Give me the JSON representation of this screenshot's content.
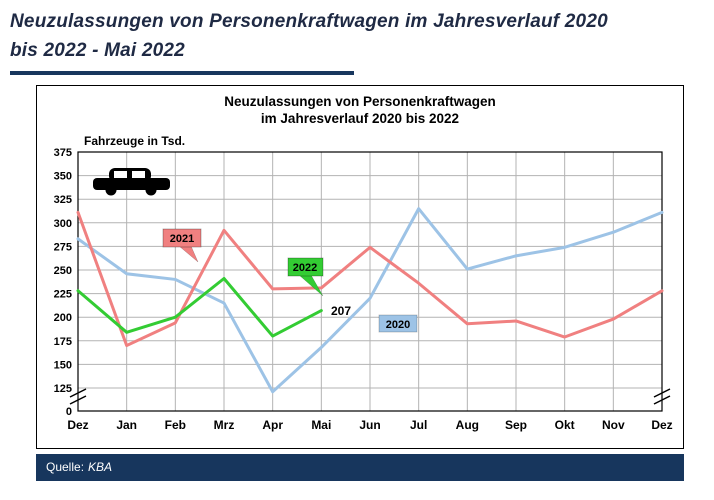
{
  "page": {
    "heading": "Neuzulassungen von Personenkraftwagen im Jahresverlauf 2020 bis 2022 - Mai 2022",
    "source": {
      "label": "Quelle:",
      "value": "KBA"
    }
  },
  "chart_data": {
    "type": "line",
    "title_line1": "Neuzulassungen von Personenkraftwagen",
    "title_line2": "im Jahresverlauf 2020 bis 2022",
    "ylabel": "Fahrzeuge in Tsd.",
    "categories": [
      "Dez",
      "Jan",
      "Feb",
      "Mrz",
      "Apr",
      "Mai",
      "Jun",
      "Jul",
      "Aug",
      "Sep",
      "Okt",
      "Nov",
      "Dez"
    ],
    "ylim": [
      125,
      375
    ],
    "yticks": [
      375,
      350,
      325,
      300,
      275,
      250,
      225,
      200,
      175,
      150,
      125,
      0
    ],
    "axis_break_at_zero": true,
    "grid": true,
    "legend_position": "inline-labels",
    "series": [
      {
        "name": "2020",
        "color": "#9DC3E6",
        "values": [
          283,
          246,
          240,
          215,
          121,
          168,
          220,
          315,
          251,
          265,
          274,
          290,
          311
        ]
      },
      {
        "name": "2021",
        "color": "#F08080",
        "values": [
          311,
          170,
          194,
          292,
          230,
          231,
          274,
          236,
          193,
          196,
          179,
          198,
          228
        ]
      },
      {
        "name": "2022",
        "color": "#33CC33",
        "values": [
          228,
          184,
          200,
          241,
          180,
          207
        ]
      }
    ],
    "annotations": {
      "label_2021": "2021",
      "label_2022": "2022",
      "label_2020": "2020",
      "mai_2022_value": "207"
    }
  }
}
